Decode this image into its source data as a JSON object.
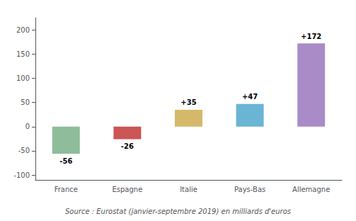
{
  "chart_data": {
    "type": "bar",
    "categories": [
      "France",
      "Espagne",
      "Italie",
      "Pays-Bas",
      "Allemagne"
    ],
    "values": [
      -56,
      -26,
      35,
      47,
      172
    ],
    "value_labels": [
      "-56",
      "-26",
      "+35",
      "+47",
      "+172"
    ],
    "data_labels": true,
    "colors": [
      "#8fbc9a",
      "#cc5555",
      "#d4b96a",
      "#6ab4d4",
      "#a98bc8"
    ],
    "ylim": [
      -110,
      225
    ],
    "yticks": [
      -100,
      -50,
      0,
      50,
      100,
      150,
      200
    ],
    "grid": false,
    "caption": "Source : Eurostat (janvier-septembre 2019) en milliards d'euros"
  }
}
